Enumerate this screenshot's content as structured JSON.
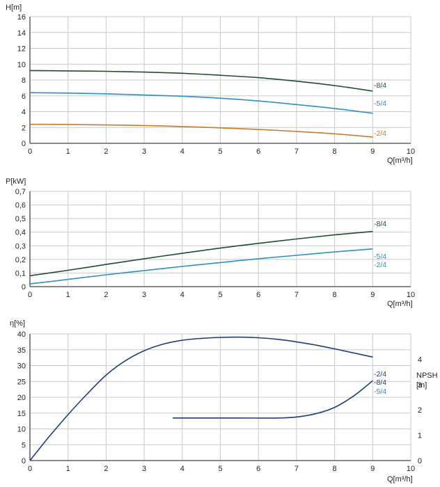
{
  "chart_data": [
    {
      "type": "line",
      "id": "head",
      "ylabel": "H[m]",
      "xlabel": "Q[m³/h]",
      "xlim": [
        0,
        10
      ],
      "ylim": [
        0,
        16
      ],
      "xticks": [
        "0",
        "1",
        "2",
        "3",
        "4",
        "5",
        "6",
        "7",
        "8",
        "9",
        "10"
      ],
      "yticks": [
        "0",
        "2",
        "4",
        "6",
        "8",
        "10",
        "12",
        "14",
        "16"
      ],
      "grid": true,
      "series": [
        {
          "name": "-8/4",
          "color": "#1d4d2b",
          "x": [
            0,
            1,
            2,
            3,
            4,
            5,
            6,
            7,
            8,
            9
          ],
          "y": [
            9.2,
            9.15,
            9.1,
            9.0,
            8.85,
            8.6,
            8.3,
            7.85,
            7.3,
            6.6
          ]
        },
        {
          "name": "-5/4",
          "color": "#2a8fc7",
          "x": [
            0,
            1,
            2,
            3,
            4,
            5,
            6,
            7,
            8,
            9
          ],
          "y": [
            6.4,
            6.35,
            6.25,
            6.1,
            5.95,
            5.7,
            5.35,
            4.9,
            4.4,
            3.8
          ]
        },
        {
          "name": "-2/4",
          "color": "#c97a2a",
          "x": [
            0,
            1,
            2,
            3,
            4,
            5,
            6,
            7,
            8,
            9
          ],
          "y": [
            2.4,
            2.38,
            2.32,
            2.25,
            2.12,
            1.95,
            1.75,
            1.5,
            1.2,
            0.8
          ]
        }
      ]
    },
    {
      "type": "line",
      "id": "power",
      "ylabel": "P[kW]",
      "xlabel": "Q[m³/h]",
      "xlim": [
        0,
        10
      ],
      "ylim": [
        0,
        0.7
      ],
      "xticks": [
        "0",
        "1",
        "2",
        "3",
        "4",
        "5",
        "6",
        "7",
        "8",
        "9",
        "10"
      ],
      "yticks": [
        "0",
        "0,1",
        "0,2",
        "0,3",
        "0,4",
        "0,5",
        "0,6",
        "0,7"
      ],
      "grid": true,
      "series": [
        {
          "name": "-8/4",
          "color": "#1d4d2b",
          "x": [
            0,
            1,
            2,
            3,
            4,
            5,
            6,
            7,
            8,
            9
          ],
          "y": [
            0.08,
            0.12,
            0.163,
            0.205,
            0.245,
            0.283,
            0.318,
            0.35,
            0.38,
            0.405
          ]
        },
        {
          "name": "-5/4",
          "color": "#2a8fc7",
          "x": [
            0,
            1,
            2,
            3,
            4,
            5,
            6,
            7,
            8,
            9
          ],
          "y": [
            0.02,
            0.053,
            0.087,
            0.118,
            0.148,
            0.177,
            0.205,
            0.23,
            0.255,
            0.277
          ]
        },
        {
          "name": "-2/4",
          "color": "#2a8fc7",
          "x": [],
          "y": []
        }
      ]
    },
    {
      "type": "line",
      "id": "efficiency",
      "ylabel": "η[%]",
      "y2label_top": "NPSH",
      "y2label_bottom": "[m]",
      "xlabel": "Q[m³/h]",
      "xlim": [
        0,
        10
      ],
      "ylim": [
        0,
        40
      ],
      "y2lim": [
        0,
        5
      ],
      "xticks": [
        "0",
        "1",
        "2",
        "3",
        "4",
        "5",
        "6",
        "7",
        "8",
        "9",
        "10"
      ],
      "yticks": [
        "0",
        "5",
        "10",
        "15",
        "20",
        "25",
        "30",
        "35",
        "40"
      ],
      "y2ticks": [
        "0",
        "1",
        "2",
        "3",
        "4"
      ],
      "grid": true,
      "series": [
        {
          "name": "η",
          "color": "#1f3c78",
          "axis": "left",
          "x": [
            0,
            0.5,
            1,
            1.5,
            2,
            2.5,
            3,
            3.5,
            4,
            4.5,
            5,
            5.5,
            6,
            6.5,
            7,
            7.5,
            8,
            8.5,
            9
          ],
          "y": [
            0,
            7.5,
            14.5,
            21,
            27,
            31.5,
            34.7,
            36.8,
            38,
            38.6,
            38.9,
            39,
            38.8,
            38.3,
            37.5,
            36.5,
            35.3,
            34,
            32.7
          ]
        },
        {
          "name": "NPSH",
          "color": "#1f3c78",
          "axis": "right",
          "x": [
            3.75,
            4.5,
            5.5,
            6.5,
            7,
            7.5,
            8,
            8.5,
            9
          ],
          "y": [
            1.68,
            1.68,
            1.68,
            1.68,
            1.72,
            1.85,
            2.1,
            2.55,
            3.15
          ]
        }
      ],
      "labels": [
        {
          "text": "-2/4",
          "color": "#1f3c78"
        },
        {
          "text": "-8/4",
          "color": "#1f3c78"
        },
        {
          "text": "-5/4",
          "color": "#2a8fc7"
        }
      ]
    }
  ]
}
